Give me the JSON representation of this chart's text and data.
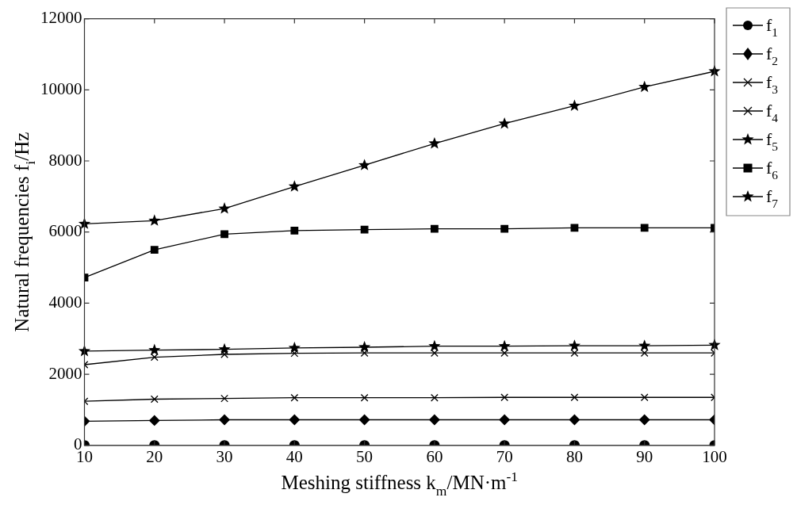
{
  "chart_data": {
    "type": "line",
    "xlabel": "Meshing stiffness k$_{m}$/MN·m$^{-1}$",
    "ylabel": "Natural frequencies f$_{i}$/Hz",
    "x": [
      10,
      20,
      30,
      40,
      50,
      60,
      70,
      80,
      90,
      100
    ],
    "xlim": [
      10,
      100
    ],
    "xticks": [
      10,
      20,
      30,
      40,
      50,
      60,
      70,
      80,
      90,
      100
    ],
    "ylim": [
      0,
      12000
    ],
    "yticks": [
      0,
      2000,
      4000,
      6000,
      8000,
      10000,
      12000
    ],
    "grid": false,
    "legend": "top right",
    "line_style": "solid",
    "series": [
      {
        "name": "f$_{1}$",
        "color": "#000000",
        "marker": "circle",
        "values": [
          0,
          0,
          0,
          0,
          0,
          0,
          0,
          0,
          0,
          0
        ]
      },
      {
        "name": "f$_{2}$",
        "color": "#000000",
        "marker": "diamond",
        "values": [
          680,
          700,
          720,
          720,
          720,
          720,
          720,
          720,
          720,
          720
        ]
      },
      {
        "name": "f$_{3}$",
        "color": "#000000",
        "marker": "cross",
        "values": [
          1240,
          1300,
          1320,
          1340,
          1340,
          1340,
          1350,
          1350,
          1350,
          1350
        ]
      },
      {
        "name": "f$_{4}$",
        "color": "#000000",
        "marker": "cross",
        "values": [
          2270,
          2480,
          2560,
          2590,
          2600,
          2600,
          2600,
          2600,
          2600,
          2600
        ]
      },
      {
        "name": "f$_{5}$",
        "color": "#000000",
        "marker": "star",
        "values": [
          2650,
          2680,
          2700,
          2740,
          2760,
          2790,
          2790,
          2800,
          2800,
          2820
        ]
      },
      {
        "name": "f$_{6}$",
        "color": "#000000",
        "marker": "square",
        "values": [
          4720,
          5500,
          5940,
          6040,
          6070,
          6090,
          6090,
          6120,
          6120,
          6120
        ]
      },
      {
        "name": "f$_{7}$",
        "color": "#000000",
        "marker": "star",
        "values": [
          6230,
          6320,
          6660,
          7280,
          7880,
          8490,
          9050,
          9550,
          10080,
          10520
        ]
      }
    ]
  }
}
